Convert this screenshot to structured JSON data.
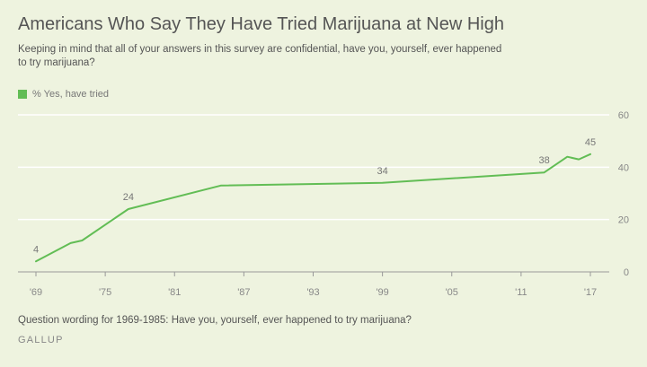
{
  "header": {
    "title": "Americans Who Say They Have Tried Marijuana at New High",
    "subtitle": "Keeping in mind that all of your answers in this survey are confidential, have you, yourself, ever happened to try marijuana?"
  },
  "legend": {
    "label": "% Yes, have tried",
    "color": "#62bd55"
  },
  "footer": {
    "note": "Question wording for 1969-1985: Have you, yourself, ever happened to try marijuana?",
    "source": "GALLUP"
  },
  "chart_data": {
    "type": "line",
    "series": [
      {
        "name": "% Yes, have tried",
        "color": "#62bd55",
        "x": [
          1969,
          1972,
          1973,
          1977,
          1985,
          1999,
          2013,
          2015,
          2016,
          2017
        ],
        "values": [
          4,
          11,
          12,
          24,
          33,
          34,
          38,
          44,
          43,
          45
        ]
      }
    ],
    "data_labels": [
      {
        "x": 1969,
        "y": 4,
        "text": "4"
      },
      {
        "x": 1977,
        "y": 24,
        "text": "24"
      },
      {
        "x": 1999,
        "y": 34,
        "text": "34"
      },
      {
        "x": 2013,
        "y": 38,
        "text": "38"
      },
      {
        "x": 2017,
        "y": 45,
        "text": "45"
      }
    ],
    "xlim": [
      1969,
      2017
    ],
    "ylim": [
      0,
      60
    ],
    "x_ticks": [
      {
        "value": 1969,
        "label": "'69"
      },
      {
        "value": 1975,
        "label": "'75"
      },
      {
        "value": 1981,
        "label": "'81"
      },
      {
        "value": 1987,
        "label": "'87"
      },
      {
        "value": 1993,
        "label": "'93"
      },
      {
        "value": 1999,
        "label": "'99"
      },
      {
        "value": 2005,
        "label": "'05"
      },
      {
        "value": 2011,
        "label": "'11"
      },
      {
        "value": 2017,
        "label": "'17"
      }
    ],
    "y_ticks": [
      0,
      20,
      40,
      60
    ],
    "grid": true,
    "colors": {
      "gridline": "#ffffff",
      "axis": "#999999",
      "tick_label": "#888888",
      "data_label": "#777777"
    }
  }
}
